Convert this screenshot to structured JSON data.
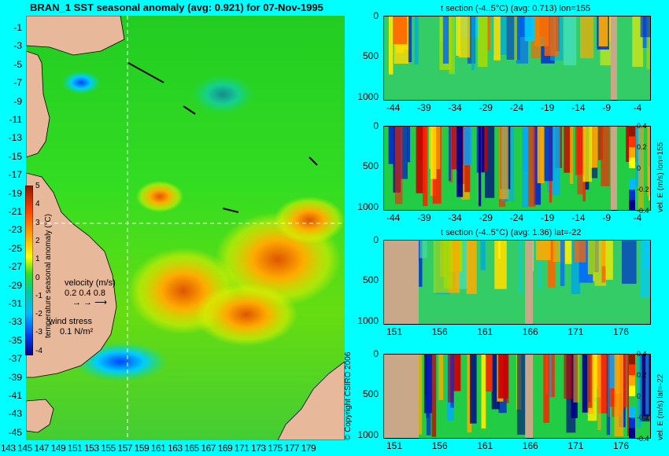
{
  "map": {
    "title": "BRAN_1 SST seasonal anomaly (avg: 0.921) for 07-Nov-1995",
    "lat_ticks": [
      "-1",
      "-3",
      "-5",
      "-7",
      "-9",
      "-11",
      "-13",
      "-15",
      "-17",
      "-19",
      "-21",
      "-23",
      "-25",
      "-27",
      "-29",
      "-31",
      "-33",
      "-35",
      "-37",
      "-39",
      "-41",
      "-43",
      "-45"
    ],
    "lon_ticks": [
      "143",
      "145",
      "147",
      "149",
      "151",
      "153",
      "155",
      "157",
      "159",
      "161",
      "163",
      "165",
      "167",
      "169",
      "171",
      "173",
      "175",
      "177",
      "179"
    ],
    "colorbar": {
      "ticks": [
        "5",
        "4",
        "3",
        "2",
        "1",
        "0",
        "-1",
        "-2",
        "-3",
        "-4"
      ],
      "label": "temperature seasonal anomaly (°C)"
    },
    "velocity_legend": {
      "title": "velocity (m/s)",
      "scale": "0.2 0.4 0.8"
    },
    "wind_legend": {
      "title": "wind stress",
      "scale": "0.1 N/m²"
    },
    "copyright": "© Copyright CSIRO 2006"
  },
  "chart_data": [
    {
      "type": "heatmap",
      "title": "t section (-4..5°C) (avg: 0.713) lon=155",
      "x_ticks": [
        "-44",
        "-39",
        "-34",
        "-29",
        "-24",
        "-19",
        "-14",
        "-9",
        "-4"
      ],
      "y_ticks": [
        "0",
        "500",
        "1000"
      ],
      "ylim": [
        1050,
        0
      ],
      "colorbar": null
    },
    {
      "type": "heatmap",
      "title": "",
      "x_ticks": [
        "-44",
        "-39",
        "-34",
        "-29",
        "-24",
        "-19",
        "-14",
        "-9",
        "-4"
      ],
      "y_ticks": [
        "0",
        "500",
        "1000"
      ],
      "ylim": [
        1050,
        0
      ],
      "colorbar": {
        "ticks": [
          "0.4",
          "0.2",
          "0",
          "-0.2",
          "-0.4"
        ],
        "label": "vel. E (m/s) lon=155"
      }
    },
    {
      "type": "heatmap",
      "title": "t section (-4..5°C) (avg: 1.36) lat=-22",
      "x_ticks": [
        "151",
        "156",
        "161",
        "166",
        "171",
        "176"
      ],
      "y_ticks": [
        "0",
        "500",
        "1000"
      ],
      "ylim": [
        1050,
        0
      ],
      "colorbar": null
    },
    {
      "type": "heatmap",
      "title": "",
      "x_ticks": [
        "151",
        "156",
        "161",
        "166",
        "171",
        "176"
      ],
      "y_ticks": [
        "0",
        "500",
        "1000"
      ],
      "ylim": [
        1050,
        0
      ],
      "colorbar": {
        "ticks": [
          "0.4",
          "0.2",
          "0",
          "-0.2",
          "-0.4"
        ],
        "label": "vel. E (m/s) lat=-22"
      }
    }
  ],
  "colors": {
    "background": "#00ffff",
    "land": "#e8b89a",
    "section_land": "#c8a888",
    "guide": "#ffffff"
  }
}
